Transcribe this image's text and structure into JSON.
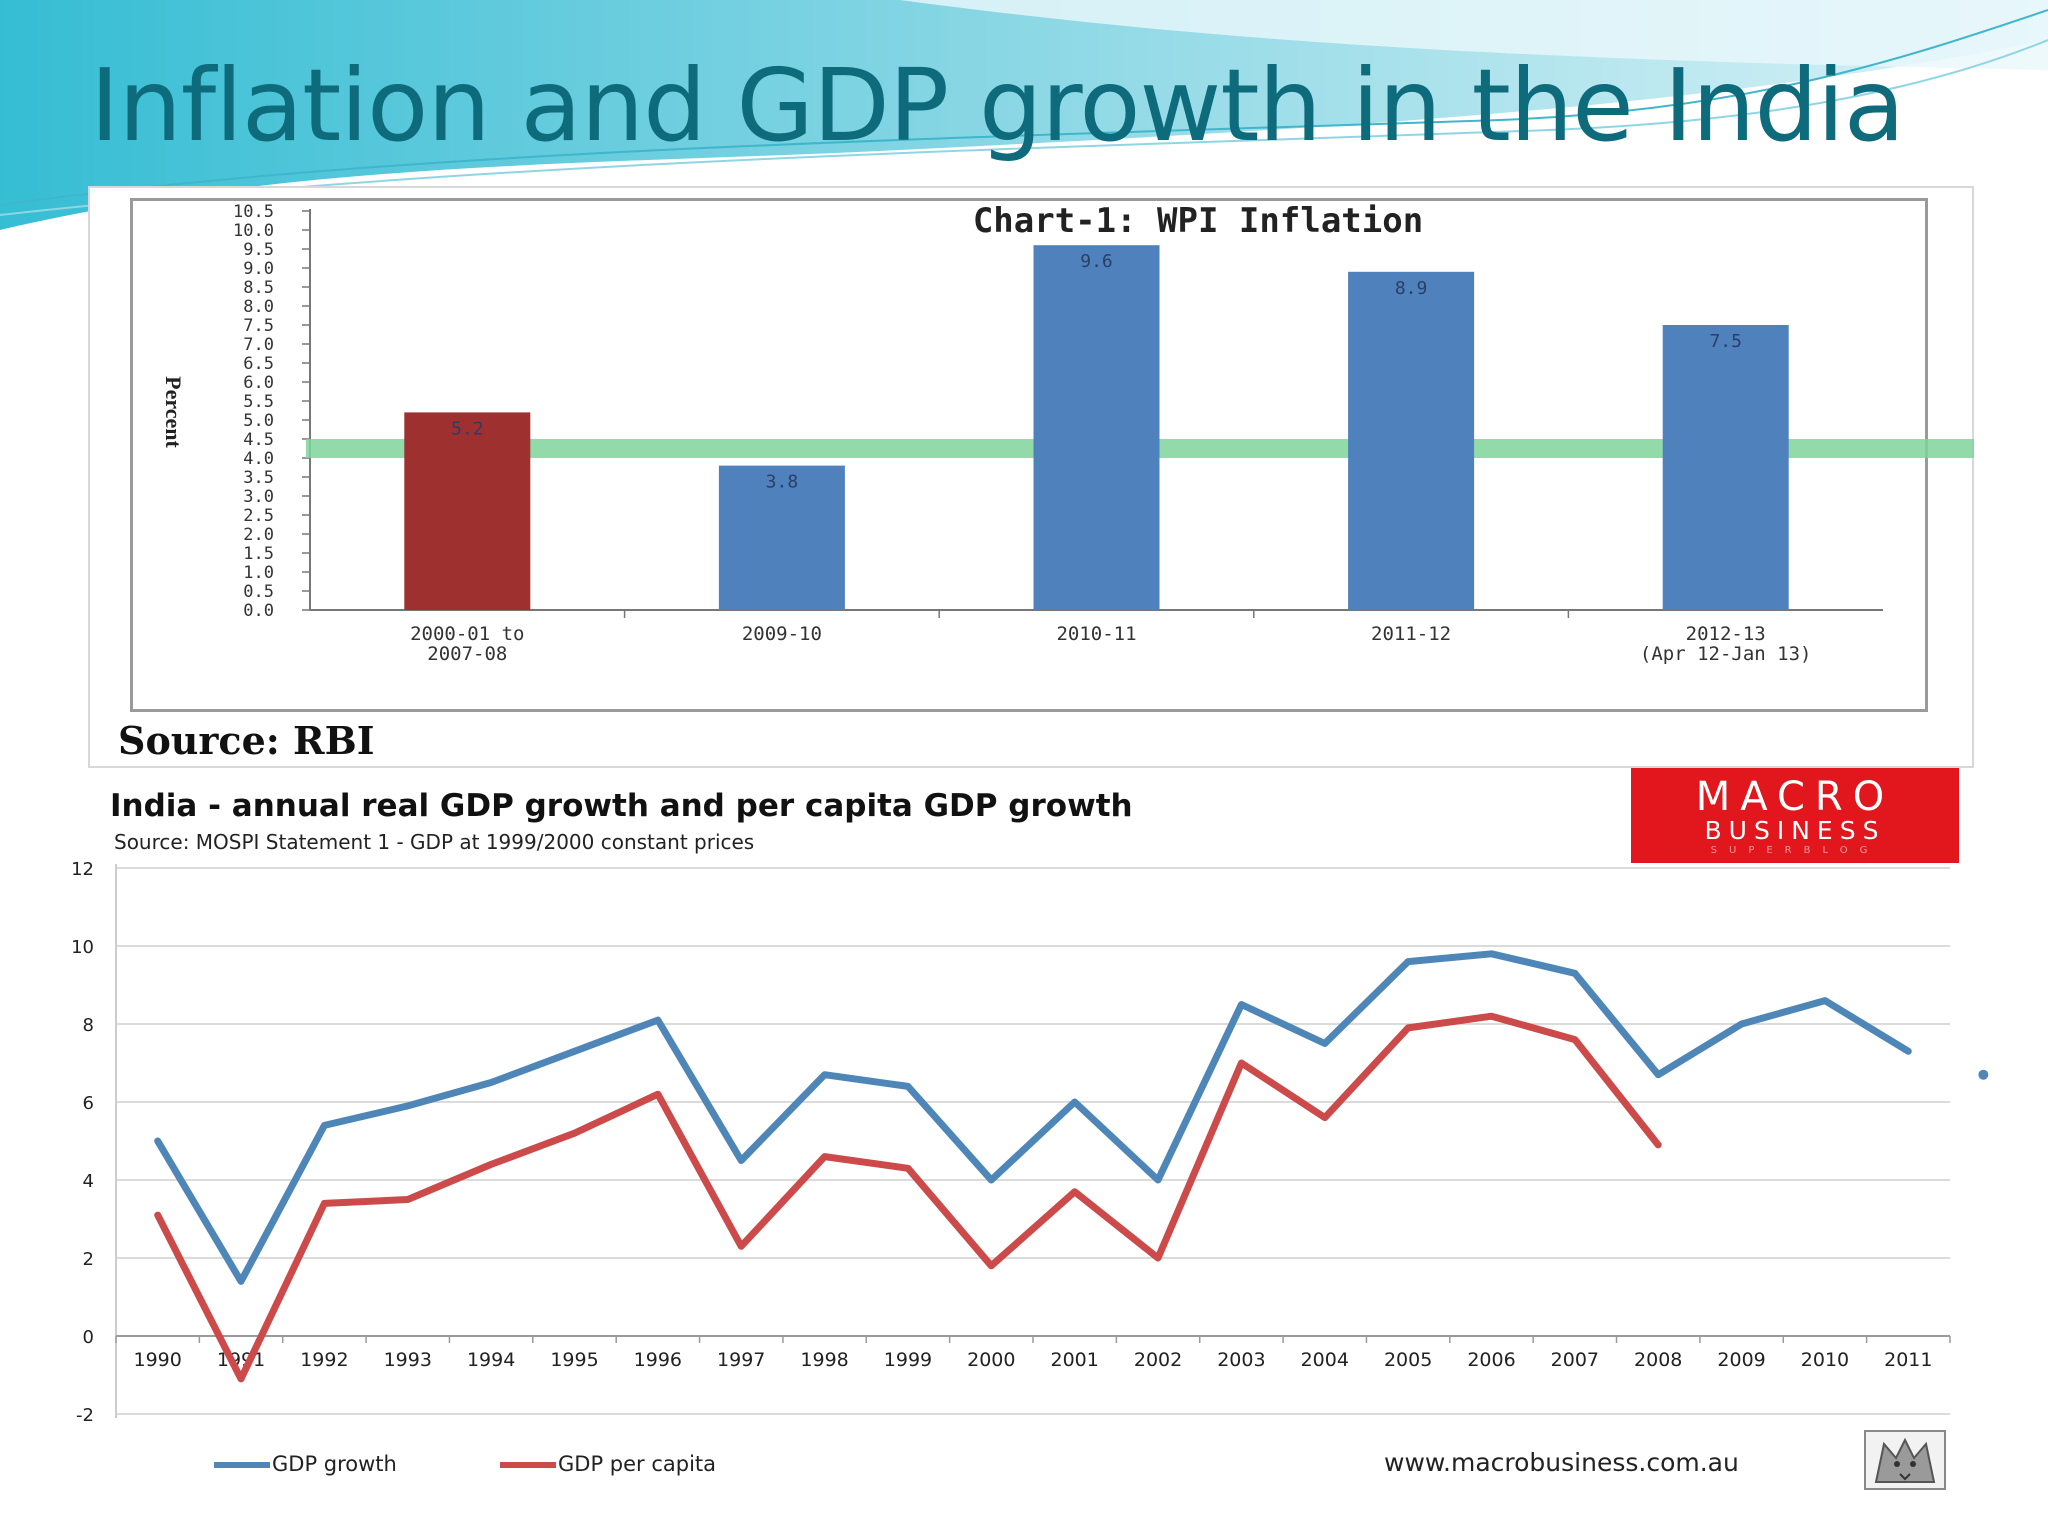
{
  "slide": {
    "title": "Inflation and GDP growth in the India",
    "colors": {
      "title": "#0e6b7c",
      "wave": "#5bc3d6"
    }
  },
  "chart1": {
    "source": "Source: RBI",
    "colors": {
      "highlight": "#9e3030",
      "bar": "#4f81bd",
      "band": "#7fd49a"
    }
  },
  "chart2": {
    "subtitle": "Source: MOSPI Statement 1 - GDP at 1999/2000 constant prices",
    "logo": {
      "line1": "MACRO",
      "line2": "BUSINESS",
      "line3": "SUPERBLOG"
    },
    "website": "www.macrobusiness.com.au",
    "colors": {
      "gdp_growth": "#4f86b8",
      "gdp_per_capita": "#cc4a4a",
      "logo_bg": "#e2161d"
    }
  },
  "chart_data": [
    {
      "type": "bar",
      "title": "Chart-1: WPI Inflation",
      "ylabel": "Percent",
      "xlabel": "",
      "categories": [
        [
          "2000-01 to",
          "2007-08"
        ],
        [
          "2009-10"
        ],
        [
          "2010-11"
        ],
        [
          "2011-12"
        ],
        [
          "2012-13",
          "(Apr 12-Jan 13)"
        ]
      ],
      "values": [
        5.2,
        3.8,
        9.6,
        8.9,
        7.5
      ],
      "value_labels": [
        "5.2",
        "3.8",
        "9.6",
        "8.9",
        "7.5"
      ],
      "highlight_index": 0,
      "yticks": [
        "0.0",
        "0.5",
        "1.0",
        "1.5",
        "2.0",
        "2.5",
        "3.0",
        "3.5",
        "4.0",
        "4.5",
        "5.0",
        "5.5",
        "6.0",
        "6.5",
        "7.0",
        "7.5",
        "8.0",
        "8.5",
        "9.0",
        "9.5",
        "10.0",
        "10.5"
      ],
      "ylim": [
        0,
        10.5
      ],
      "reference_band": [
        4.0,
        4.5
      ],
      "grid": false
    },
    {
      "type": "line",
      "title": "India -  annual real GDP growth and per capita GDP growth",
      "x": [
        "1990",
        "1991",
        "1992",
        "1993",
        "1994",
        "1995",
        "1996",
        "1997",
        "1998",
        "1999",
        "2000",
        "2001",
        "2002",
        "2003",
        "2004",
        "2005",
        "2006",
        "2007",
        "2008",
        "2009",
        "2010",
        "2011"
      ],
      "series": [
        {
          "name": "GDP growth",
          "values": [
            5.0,
            1.4,
            5.4,
            5.9,
            6.5,
            7.3,
            8.1,
            4.5,
            6.7,
            6.4,
            4.0,
            6.0,
            4.0,
            8.5,
            7.5,
            9.6,
            9.8,
            9.3,
            6.7,
            8.0,
            8.6,
            7.3
          ]
        },
        {
          "name": "GDP per capita",
          "values": [
            3.1,
            -1.1,
            3.4,
            3.5,
            4.4,
            5.2,
            6.2,
            2.3,
            4.6,
            4.3,
            1.8,
            3.7,
            2.0,
            7.0,
            5.6,
            7.9,
            8.2,
            7.6,
            4.9,
            null,
            null,
            null
          ]
        }
      ],
      "extra_point": {
        "series": "GDP growth",
        "x_position": 22.4,
        "value": 6.7
      },
      "yticks": [
        "-2",
        "0",
        "2",
        "4",
        "6",
        "8",
        "10",
        "12"
      ],
      "ylim": [
        -2,
        12
      ],
      "grid": true,
      "legend": "bottom-left"
    }
  ]
}
